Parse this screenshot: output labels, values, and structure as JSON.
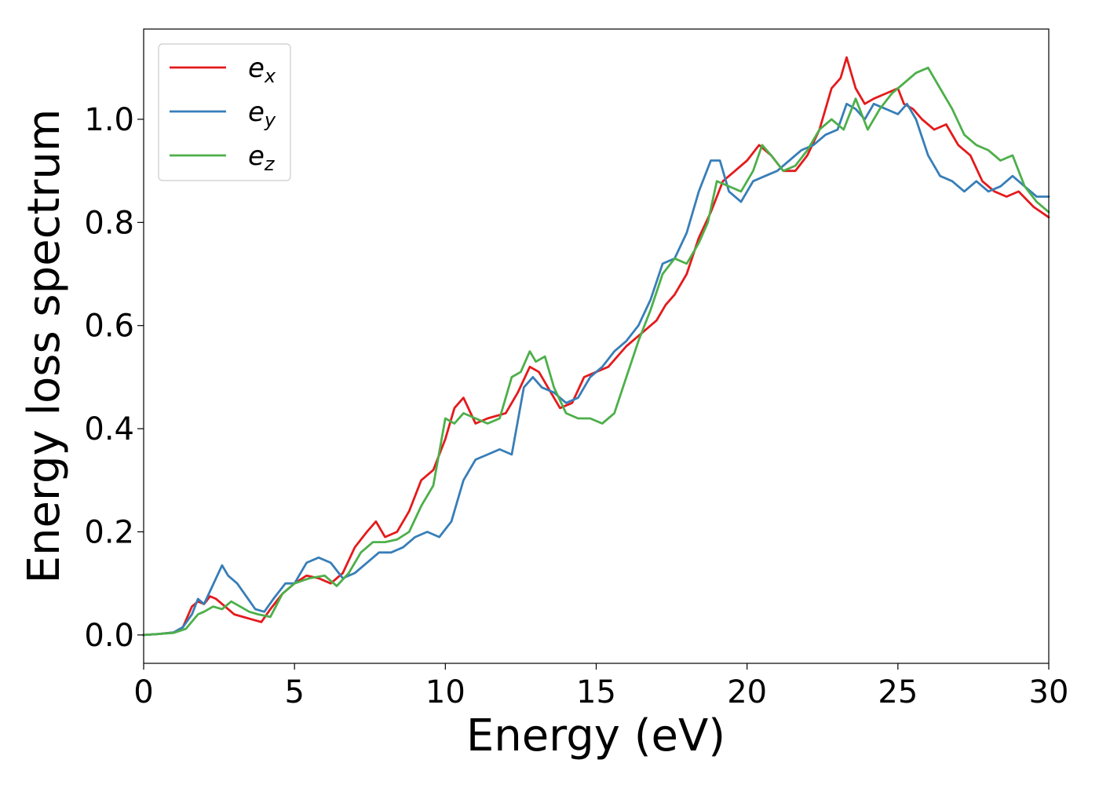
{
  "chart_data": {
    "type": "line",
    "xlabel": "Energy (eV)",
    "ylabel": "Energy loss spectrum",
    "xlim": [
      0,
      30
    ],
    "ylim": [
      -0.055,
      1.175
    ],
    "xticks": [
      0,
      5,
      10,
      15,
      20,
      25,
      30
    ],
    "xtick_labels": [
      "0",
      "5",
      "10",
      "15",
      "20",
      "25",
      "30"
    ],
    "yticks": [
      0.0,
      0.2,
      0.4,
      0.6,
      0.8,
      1.0
    ],
    "ytick_labels": [
      "0.0",
      "0.2",
      "0.4",
      "0.6",
      "0.8",
      "1.0"
    ],
    "grid": false,
    "legend_position": "top-left",
    "series": [
      {
        "name": "e_x",
        "base": "e",
        "sub": "x",
        "color": "#e41a1c",
        "x": [
          0,
          0.5,
          1,
          1.3,
          1.6,
          1.8,
          2.0,
          2.2,
          2.4,
          2.7,
          3.0,
          3.3,
          3.6,
          3.9,
          4.2,
          4.6,
          5.0,
          5.4,
          5.8,
          6.2,
          6.6,
          7.0,
          7.4,
          7.7,
          8.0,
          8.4,
          8.8,
          9.2,
          9.6,
          10.0,
          10.3,
          10.6,
          11.0,
          11.4,
          12.0,
          12.4,
          12.8,
          13.1,
          13.4,
          13.8,
          14.2,
          14.6,
          15.0,
          15.4,
          16.0,
          16.4,
          17.0,
          17.3,
          17.6,
          18.0,
          18.4,
          18.8,
          19.2,
          19.6,
          20.0,
          20.4,
          20.8,
          21.2,
          21.6,
          22.0,
          22.4,
          22.8,
          23.1,
          23.3,
          23.6,
          23.9,
          24.2,
          24.6,
          25.0,
          25.2,
          25.5,
          25.8,
          26.2,
          26.6,
          27.0,
          27.4,
          27.8,
          28.2,
          28.6,
          29.0,
          29.5,
          30.0
        ],
        "y": [
          0,
          0.002,
          0.005,
          0.015,
          0.055,
          0.065,
          0.06,
          0.075,
          0.07,
          0.055,
          0.04,
          0.035,
          0.03,
          0.025,
          0.05,
          0.08,
          0.1,
          0.115,
          0.11,
          0.1,
          0.12,
          0.17,
          0.2,
          0.22,
          0.19,
          0.2,
          0.24,
          0.3,
          0.32,
          0.38,
          0.44,
          0.46,
          0.41,
          0.42,
          0.43,
          0.47,
          0.52,
          0.51,
          0.48,
          0.44,
          0.45,
          0.5,
          0.51,
          0.52,
          0.56,
          0.58,
          0.61,
          0.64,
          0.66,
          0.7,
          0.77,
          0.82,
          0.88,
          0.9,
          0.92,
          0.95,
          0.93,
          0.9,
          0.9,
          0.93,
          0.98,
          1.06,
          1.08,
          1.12,
          1.06,
          1.03,
          1.04,
          1.05,
          1.06,
          1.03,
          1.02,
          1.0,
          0.98,
          0.99,
          0.95,
          0.93,
          0.88,
          0.86,
          0.85,
          0.86,
          0.83,
          0.81
        ]
      },
      {
        "name": "e_y",
        "base": "e",
        "sub": "y",
        "color": "#377eb8",
        "x": [
          0,
          0.5,
          1,
          1.3,
          1.6,
          1.8,
          2.0,
          2.2,
          2.4,
          2.6,
          2.8,
          3.1,
          3.4,
          3.7,
          4.0,
          4.3,
          4.7,
          5.0,
          5.4,
          5.8,
          6.2,
          6.6,
          7.0,
          7.4,
          7.8,
          8.2,
          8.6,
          9.0,
          9.4,
          9.8,
          10.2,
          10.6,
          11.0,
          11.4,
          11.8,
          12.2,
          12.6,
          12.9,
          13.2,
          13.6,
          14.0,
          14.4,
          14.8,
          15.2,
          15.6,
          16.0,
          16.4,
          16.8,
          17.2,
          17.6,
          18.0,
          18.4,
          18.8,
          19.1,
          19.4,
          19.8,
          20.2,
          20.6,
          21.0,
          21.4,
          21.8,
          22.2,
          22.6,
          23.0,
          23.3,
          23.6,
          23.9,
          24.2,
          24.6,
          25.0,
          25.3,
          25.6,
          26.0,
          26.4,
          26.8,
          27.2,
          27.6,
          28.0,
          28.4,
          28.8,
          29.2,
          29.6,
          30.0
        ],
        "y": [
          0,
          0.002,
          0.005,
          0.015,
          0.04,
          0.07,
          0.06,
          0.085,
          0.11,
          0.135,
          0.115,
          0.1,
          0.075,
          0.05,
          0.045,
          0.07,
          0.1,
          0.1,
          0.14,
          0.15,
          0.14,
          0.11,
          0.12,
          0.14,
          0.16,
          0.16,
          0.17,
          0.19,
          0.2,
          0.19,
          0.22,
          0.3,
          0.34,
          0.35,
          0.36,
          0.35,
          0.48,
          0.5,
          0.48,
          0.47,
          0.45,
          0.46,
          0.5,
          0.52,
          0.55,
          0.57,
          0.6,
          0.65,
          0.72,
          0.73,
          0.78,
          0.86,
          0.92,
          0.92,
          0.86,
          0.84,
          0.88,
          0.89,
          0.9,
          0.92,
          0.94,
          0.95,
          0.97,
          0.98,
          1.03,
          1.02,
          1.0,
          1.03,
          1.02,
          1.01,
          1.03,
          1.0,
          0.93,
          0.89,
          0.88,
          0.86,
          0.88,
          0.86,
          0.87,
          0.89,
          0.87,
          0.85,
          0.85
        ]
      },
      {
        "name": "e_z",
        "base": "e",
        "sub": "z",
        "color": "#4daf4a",
        "x": [
          0,
          0.5,
          1,
          1.4,
          1.8,
          2.0,
          2.3,
          2.6,
          2.9,
          3.2,
          3.5,
          3.8,
          4.2,
          4.6,
          5.0,
          5.5,
          6.0,
          6.4,
          6.8,
          7.2,
          7.6,
          8.0,
          8.4,
          8.8,
          9.2,
          9.6,
          10.0,
          10.3,
          10.6,
          11.0,
          11.4,
          11.8,
          12.2,
          12.5,
          12.8,
          13.0,
          13.3,
          13.6,
          14.0,
          14.4,
          14.8,
          15.2,
          15.6,
          16.0,
          16.4,
          16.8,
          17.2,
          17.6,
          18.0,
          18.4,
          18.7,
          19.0,
          19.4,
          19.8,
          20.2,
          20.5,
          20.8,
          21.2,
          21.6,
          22.0,
          22.4,
          22.8,
          23.2,
          23.6,
          24.0,
          24.4,
          24.8,
          25.2,
          25.6,
          26.0,
          26.4,
          26.8,
          27.2,
          27.6,
          28.0,
          28.4,
          28.8,
          29.2,
          29.6,
          30.0
        ],
        "y": [
          0,
          0.002,
          0.004,
          0.012,
          0.04,
          0.045,
          0.055,
          0.05,
          0.065,
          0.055,
          0.045,
          0.04,
          0.035,
          0.08,
          0.1,
          0.11,
          0.115,
          0.095,
          0.12,
          0.16,
          0.18,
          0.18,
          0.185,
          0.2,
          0.25,
          0.29,
          0.42,
          0.41,
          0.43,
          0.42,
          0.41,
          0.42,
          0.5,
          0.51,
          0.55,
          0.53,
          0.54,
          0.48,
          0.43,
          0.42,
          0.42,
          0.41,
          0.43,
          0.5,
          0.57,
          0.63,
          0.7,
          0.73,
          0.72,
          0.76,
          0.8,
          0.88,
          0.87,
          0.86,
          0.9,
          0.95,
          0.93,
          0.9,
          0.91,
          0.94,
          0.98,
          1.0,
          0.98,
          1.04,
          0.98,
          1.02,
          1.05,
          1.07,
          1.09,
          1.1,
          1.06,
          1.02,
          0.97,
          0.95,
          0.94,
          0.92,
          0.93,
          0.87,
          0.84,
          0.82
        ]
      }
    ]
  }
}
